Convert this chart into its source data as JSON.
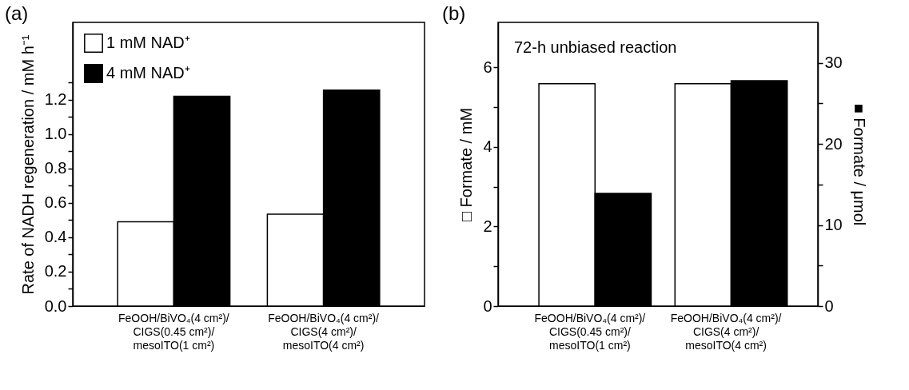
{
  "chart_data": [
    {
      "type": "bar",
      "title": "(a)",
      "ylabel": "Rate of NADH regeneration / mM h⁻¹",
      "categories": [
        "FeOOH/BiVO₄(4 cm²)/CIGS(0.45 cm²)/mesoITO(1 cm²)",
        "FeOOH/BiVO₄(4 cm²)/CIGS(4 cm²)/mesoITO(4 cm²)"
      ],
      "series": [
        {
          "name": "1 mM NAD⁺",
          "color": "#ffffff",
          "values": [
            0.49,
            0.535
          ]
        },
        {
          "name": "4 mM NAD⁺",
          "color": "#000000",
          "values": [
            1.22,
            1.256
          ]
        }
      ],
      "ylim": [
        0,
        1.65
      ],
      "yticks": [
        {
          "value": 0,
          "label": "0.0"
        },
        {
          "value": 0.1,
          "label": null
        },
        {
          "value": 0.2,
          "label": "0.2"
        },
        {
          "value": 0.3,
          "label": null
        },
        {
          "value": 0.4,
          "label": "0.4"
        },
        {
          "value": 0.5,
          "label": null
        },
        {
          "value": 0.6,
          "label": "0.6"
        },
        {
          "value": 0.7,
          "label": null
        },
        {
          "value": 0.8,
          "label": "0.8"
        },
        {
          "value": 0.9,
          "label": null
        },
        {
          "value": 1,
          "label": "1.0"
        },
        {
          "value": 1.1,
          "label": null
        },
        {
          "value": 1.2,
          "label": "1.2"
        },
        {
          "value": 1.3,
          "label": null
        }
      ],
      "legend": "top left",
      "grid": false
    },
    {
      "type": "bar",
      "title": "(b)",
      "ylabel": "□ Formate / mM",
      "y2label": "■ Formate / μmol",
      "annotations": [
        "72-h unbiased reaction"
      ],
      "categories": [
        "FeOOH/BiVO₄(4 cm²)/CIGS(0.45 cm²)/mesoITO(1 cm²)",
        "FeOOH/BiVO₄(4 cm²)/CIGS(4 cm²)/mesoITO(4 cm²)"
      ],
      "series": [
        {
          "color": "#ffffff",
          "values": [
            5.59,
            5.59
          ]
        },
        {
          "color": "#000000",
          "axis": "y2",
          "values": [
            13.9,
            27.8
          ]
        }
      ],
      "ylim": [
        0,
        7.13
      ],
      "yticks": [
        0,
        {
          "value": 1,
          "label": null
        },
        2,
        {
          "value": 3,
          "label": null
        },
        4,
        {
          "value": 5,
          "label": null
        },
        6
      ],
      "y2lim": [
        0,
        35
      ],
      "y2ticks": [
        0,
        {
          "value": 5,
          "label": null
        },
        10,
        {
          "value": 15,
          "label": null
        },
        20,
        {
          "value": 25,
          "label": null
        },
        30
      ],
      "legend": false,
      "grid": false
    }
  ]
}
